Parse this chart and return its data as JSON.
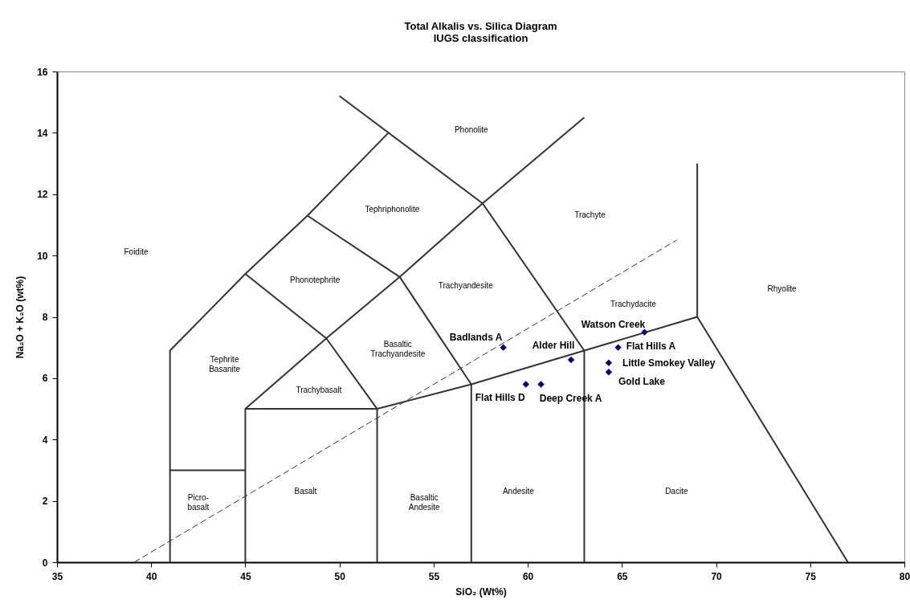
{
  "chart_data": {
    "type": "scatter",
    "title": "Total Alkalis vs. Silica Diagram",
    "subtitle": "IUGS classification",
    "xlabel": "SiO₂ (Wt%)",
    "ylabel": "Na₂O + K₂O (wt%)",
    "xlim": [
      35,
      80
    ],
    "ylim": [
      0,
      16
    ],
    "xticks": [
      35,
      40,
      45,
      50,
      55,
      60,
      65,
      70,
      75,
      80
    ],
    "yticks": [
      0,
      2,
      4,
      6,
      8,
      10,
      12,
      14,
      16
    ],
    "grid": false,
    "series": [
      {
        "type": "line",
        "color": "#333333",
        "line_style": "solid",
        "x": [
          41,
          41,
          45,
          48.3,
          52.6
        ],
        "values": [
          0,
          6.9,
          9.4,
          11.3,
          14
        ]
      },
      {
        "type": "line",
        "color": "#333333",
        "line_style": "solid",
        "x": [
          41,
          45
        ],
        "values": [
          3,
          3
        ]
      },
      {
        "type": "line",
        "color": "#333333",
        "line_style": "solid",
        "x": [
          45,
          45,
          52,
          52
        ],
        "values": [
          0,
          5,
          5,
          0
        ]
      },
      {
        "type": "line",
        "color": "#333333",
        "line_style": "solid",
        "x": [
          45,
          49.3,
          53.2,
          57.6,
          63
        ],
        "values": [
          5,
          7.3,
          9.3,
          11.7,
          14.5
        ]
      },
      {
        "type": "line",
        "color": "#333333",
        "line_style": "solid",
        "x": [
          45,
          49.3,
          52,
          57,
          63,
          69,
          77
        ],
        "values": [
          9.4,
          7.3,
          5,
          5.8,
          6.9,
          8,
          0
        ]
      },
      {
        "type": "line",
        "color": "#333333",
        "line_style": "solid",
        "x": [
          48.3,
          53.2,
          57,
          57
        ],
        "values": [
          11.3,
          9.3,
          5.8,
          0
        ]
      },
      {
        "type": "line",
        "color": "#333333",
        "line_style": "solid",
        "x": [
          50,
          57.6,
          63,
          63
        ],
        "values": [
          15.2,
          11.7,
          6.9,
          0
        ]
      },
      {
        "type": "line",
        "color": "#333333",
        "line_style": "solid",
        "x": [
          69,
          69
        ],
        "values": [
          8,
          13
        ]
      },
      {
        "type": "line",
        "color": "#333333",
        "line_style": "dashed",
        "x": [
          39.1,
          67.9
        ],
        "values": [
          0,
          10.5
        ]
      },
      {
        "marker": "diamond",
        "color": "#000080",
        "x": [
          58.7,
          62.3,
          66.2,
          64.8,
          64.3,
          64.3,
          59.9,
          60.7
        ],
        "values": [
          7.0,
          6.6,
          7.5,
          7.0,
          6.5,
          6.2,
          5.8,
          5.8
        ]
      }
    ],
    "annotations": [
      {
        "text": "Badlands A",
        "x": 58.7,
        "y": 7.0
      },
      {
        "text": "Alder Hill",
        "x": 62.3,
        "y": 6.6
      },
      {
        "text": "Watson Creek",
        "x": 66.2,
        "y": 7.5
      },
      {
        "text": "Flat Hills A",
        "x": 64.8,
        "y": 7.0
      },
      {
        "text": "Little Smokey Valley",
        "x": 64.3,
        "y": 6.5
      },
      {
        "text": "Gold Lake",
        "x": 64.3,
        "y": 6.2
      },
      {
        "text": "Flat Hills D",
        "x": 59.9,
        "y": 5.8
      },
      {
        "text": "Deep Creek A",
        "x": 60.7,
        "y": 5.8
      },
      "Foidite",
      "Phonolite",
      "Tephriphonolite",
      "Trachyte",
      "Phonotephrite",
      "Trachyandesite",
      "Trachydacite",
      "Rhyolite",
      "Tephrite\nBasanite",
      "Basaltic\nTrachyandesite",
      "Trachybasalt",
      "Picro-\nbasalt",
      "Basalt",
      "Basaltic\nAndesite",
      "Andesite",
      "Dacite"
    ]
  }
}
